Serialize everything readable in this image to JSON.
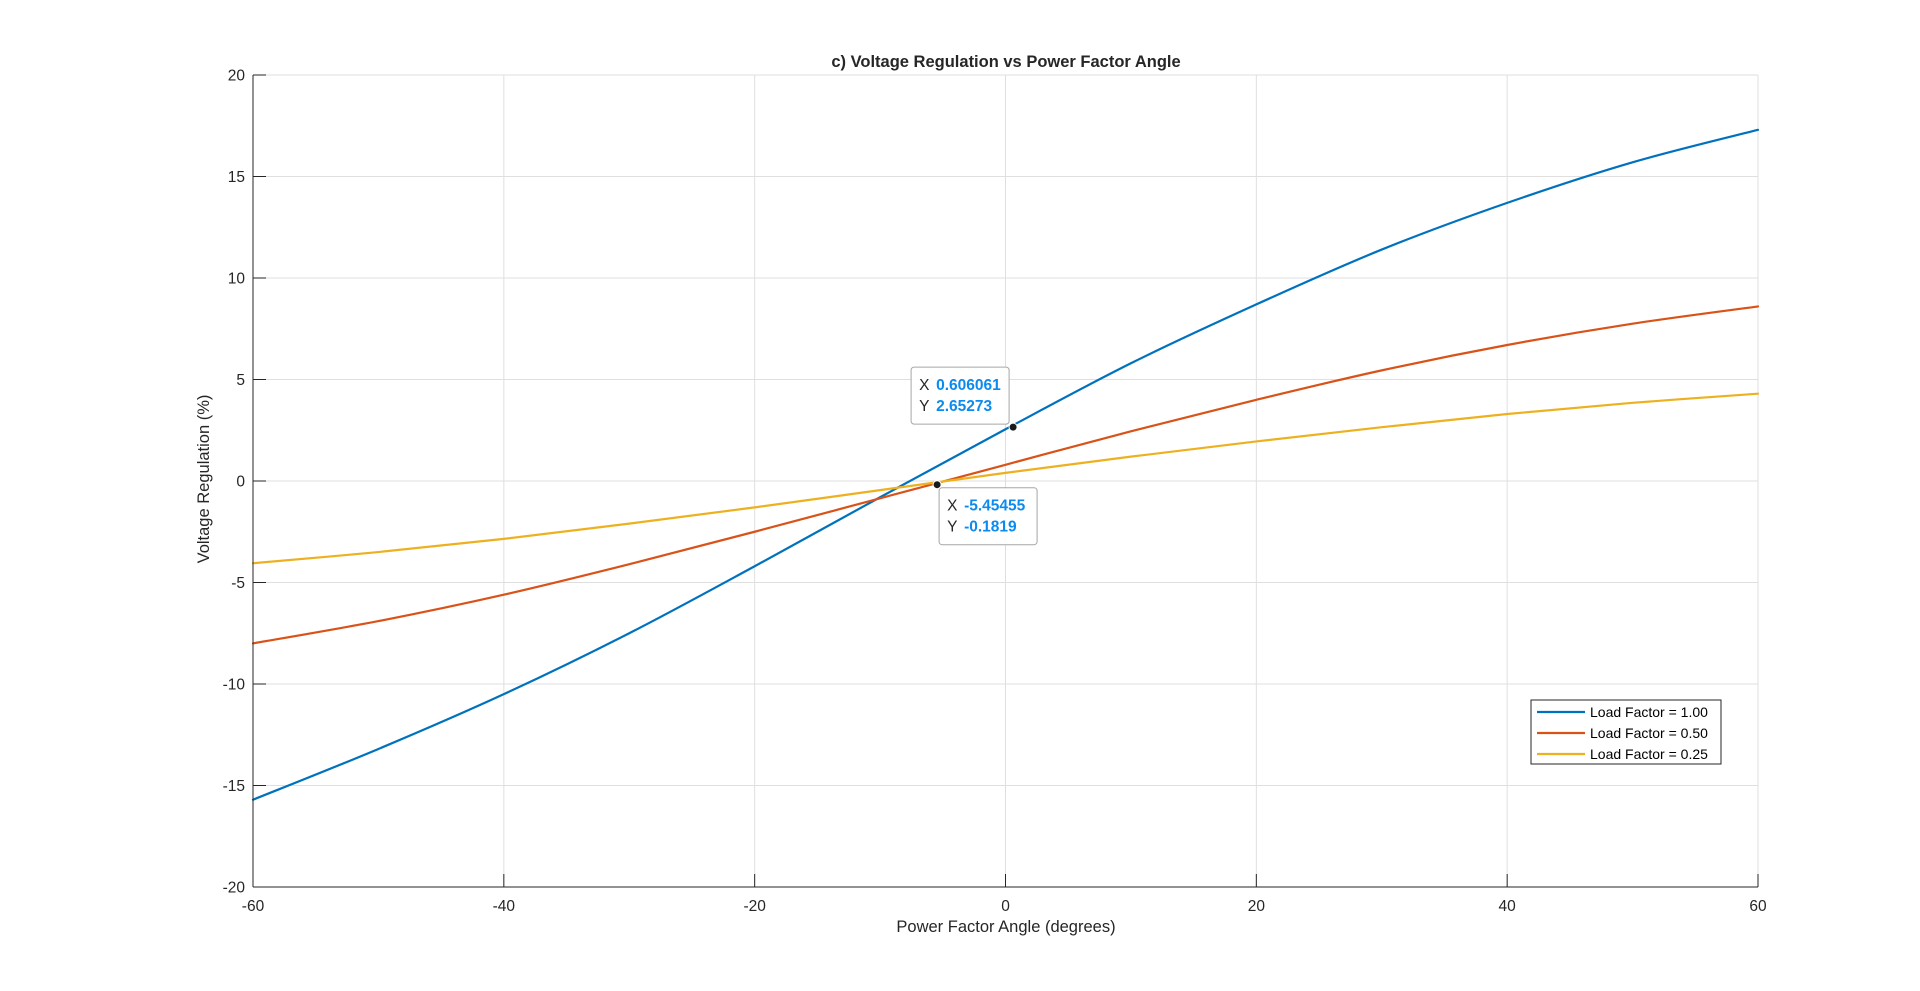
{
  "figure": {
    "background": "#ffffff"
  },
  "chart_data": {
    "type": "line",
    "title": "c) Voltage Regulation vs Power Factor Angle",
    "xlabel": "Power Factor Angle (degrees)",
    "ylabel": "Voltage Regulation (%)",
    "xlim": [
      -60,
      60
    ],
    "ylim": [
      -20,
      20
    ],
    "xticks": [
      -60,
      -40,
      -20,
      0,
      20,
      40,
      60
    ],
    "xtick_labels": [
      "-60",
      "-40",
      "-20",
      "0",
      "20",
      "40",
      "60"
    ],
    "yticks": [
      -20,
      -15,
      -10,
      -5,
      0,
      5,
      10,
      15,
      20
    ],
    "ytick_labels": [
      "-20",
      "-15",
      "-10",
      "-5",
      "0",
      "5",
      "10",
      "15",
      "20"
    ],
    "grid": true,
    "legend_position": "bottom-right",
    "x": [
      -60,
      -50,
      -40,
      -30,
      -20,
      -10,
      0,
      10,
      20,
      30,
      40,
      50,
      60
    ],
    "series": [
      {
        "name": "Load Factor = 1.00",
        "color": "#0072BD",
        "values": [
          -15.7,
          -13.2,
          -10.5,
          -7.5,
          -4.2,
          -0.8,
          2.55,
          5.8,
          8.7,
          11.4,
          13.7,
          15.7,
          17.3
        ]
      },
      {
        "name": "Load Factor = 0.50",
        "color": "#D95319",
        "values": [
          -8.0,
          -6.9,
          -5.6,
          -4.1,
          -2.5,
          -0.85,
          0.8,
          2.45,
          4.0,
          5.45,
          6.7,
          7.75,
          8.6
        ]
      },
      {
        "name": "Load Factor = 0.25",
        "color": "#EDB120",
        "values": [
          -4.05,
          -3.5,
          -2.85,
          -2.1,
          -1.3,
          -0.45,
          0.4,
          1.2,
          1.95,
          2.65,
          3.3,
          3.85,
          4.3
        ]
      }
    ],
    "datatips": [
      {
        "x": 0.606061,
        "y": 2.65273,
        "x_label": "X",
        "y_label": "Y",
        "x_text": "0.606061",
        "y_text": "2.65273",
        "placement": "above-left"
      },
      {
        "x": -5.45455,
        "y": -0.1819,
        "x_label": "X",
        "y_label": "Y",
        "x_text": "-5.45455",
        "y_text": "-0.1819",
        "placement": "below-right"
      }
    ],
    "colors": {
      "axis": "#262626",
      "grid": "#dfdfdf",
      "datatip_value": "#0b8bee",
      "datatip_border": "#a6a6a6"
    }
  }
}
